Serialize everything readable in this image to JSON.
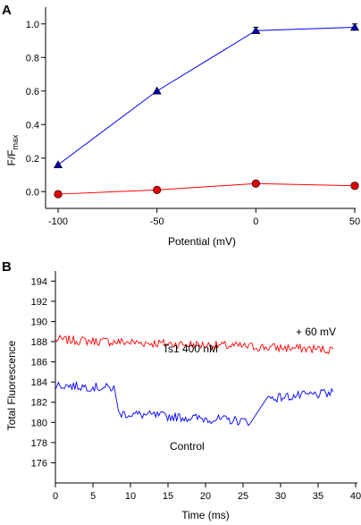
{
  "chart_data": [
    {
      "panel": "A",
      "type": "line",
      "ylabel_main": "F/F",
      "ylabel_sub": "max",
      "xlabel": "Potential (mV)",
      "x": [
        -100,
        -50,
        0,
        50
      ],
      "xlim": [
        -100,
        50
      ],
      "ylim": [
        -0.1,
        1.1
      ],
      "xticks": [
        -100,
        -50,
        0,
        50
      ],
      "yticks": [
        0.0,
        0.2,
        0.4,
        0.6,
        0.8,
        1.0
      ],
      "ytick_labels": [
        "0.0",
        "0.2",
        "0.4",
        "0.6",
        "0.8",
        "1.0"
      ],
      "grid": false,
      "series": [
        {
          "color": "#0000ff",
          "marker": "triangle",
          "marker_color": "#0000aa",
          "values": [
            0.16,
            0.6,
            0.96,
            0.98
          ],
          "errors": [
            0,
            0,
            0.02,
            0.02
          ]
        },
        {
          "color": "#ff0000",
          "marker": "circle",
          "marker_color": "#dd0000",
          "values": [
            -0.015,
            0.01,
            0.048,
            0.035
          ],
          "errors": [
            0,
            0,
            0,
            0
          ]
        }
      ]
    },
    {
      "panel": "B",
      "type": "line",
      "xlabel": "Time (ms)",
      "ylabel": "Total Fluorescence",
      "xlim": [
        0,
        40
      ],
      "ylim": [
        174,
        195
      ],
      "xticks": [
        0,
        5,
        10,
        15,
        20,
        25,
        30,
        35,
        40
      ],
      "yticks": [
        176,
        178,
        180,
        182,
        184,
        186,
        188,
        190,
        192,
        194
      ],
      "grid": false,
      "annotations": {
        "voltage": "+ 60 mV",
        "ts1": "Ts1 400 nM",
        "control": "Control"
      },
      "series": [
        {
          "color": "#ff0000",
          "segments": [
            {
              "x": [
                0,
                37
              ],
              "y": [
                188.2,
                187.2
              ]
            }
          ],
          "noise_amplitude": 0.45
        },
        {
          "color": "#0000ff",
          "segments": [
            {
              "x": [
                0,
                7.8
              ],
              "y": [
                183.7,
                183.4
              ]
            },
            {
              "x": [
                8.4,
                25.9
              ],
              "y": [
                180.9,
                180.1
              ]
            },
            {
              "x": [
                28.3,
                37
              ],
              "y": [
                182.4,
                182.9
              ]
            }
          ],
          "noise_amplitude": 0.45
        }
      ]
    }
  ]
}
